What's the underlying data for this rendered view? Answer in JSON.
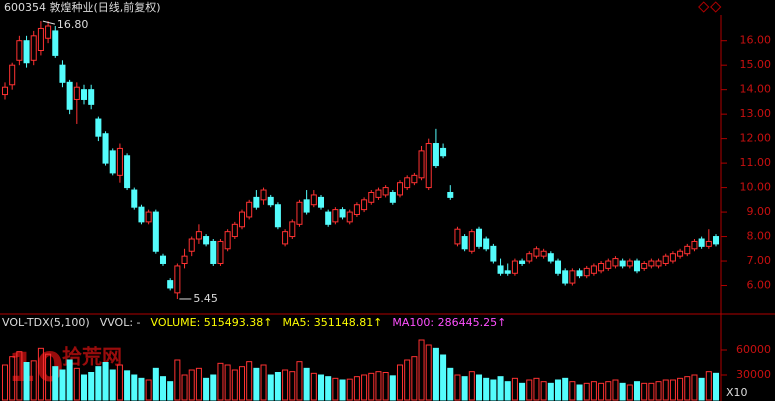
{
  "chart_data": {
    "type": "candlestick",
    "title": "600354 敦煌种业(日线,前复权)",
    "open": [
      13.8,
      14.2,
      15.2,
      16.0,
      15.2,
      15.6,
      16.1,
      16.4,
      15.0,
      14.3,
      13.6,
      14.0,
      14.0,
      12.8,
      12.2,
      11.5,
      10.5,
      11.3,
      9.9,
      9.2,
      8.6,
      9.0,
      7.2,
      6.2,
      5.7,
      6.9,
      7.4,
      7.9,
      8.0,
      7.8,
      6.9,
      7.5,
      8.0,
      8.4,
      8.8,
      9.6,
      9.5,
      9.6,
      9.3,
      7.7,
      8.0,
      8.5,
      9.5,
      9.3,
      9.6,
      9.0,
      8.6,
      9.1,
      8.6,
      8.9,
      9.1,
      9.4,
      9.6,
      9.7,
      9.8,
      9.7,
      10.0,
      10.2,
      10.4,
      10.0,
      11.8,
      11.6,
      9.8,
      7.7,
      8.0,
      7.4,
      8.3,
      7.9,
      7.6,
      6.8,
      6.6,
      6.5,
      7.0,
      7.0,
      7.2,
      7.2,
      7.3,
      7.0,
      6.6,
      6.1,
      6.6,
      6.4,
      6.5,
      6.6,
      6.7,
      6.8,
      7.0,
      6.8,
      7.0,
      6.7,
      6.8,
      6.8,
      6.9,
      7.0,
      7.2,
      7.3,
      7.5,
      7.9,
      7.6,
      8.0
    ],
    "high": [
      14.3,
      15.1,
      16.2,
      16.2,
      16.4,
      16.8,
      16.8,
      16.6,
      15.2,
      14.4,
      14.3,
      14.2,
      14.2,
      12.9,
      12.3,
      11.6,
      11.8,
      11.4,
      10.0,
      9.3,
      9.1,
      9.1,
      7.3,
      6.3,
      6.9,
      7.5,
      8.0,
      8.5,
      8.1,
      7.9,
      7.9,
      8.3,
      8.6,
      9.1,
      9.5,
      9.9,
      10.0,
      9.7,
      9.4,
      8.3,
      8.7,
      9.5,
      9.9,
      9.9,
      9.7,
      9.1,
      9.2,
      9.2,
      9.1,
      9.4,
      9.6,
      9.9,
      10.0,
      10.1,
      9.9,
      10.3,
      10.5,
      10.6,
      11.7,
      12.0,
      12.4,
      11.8,
      10.1,
      8.4,
      8.1,
      8.3,
      8.4,
      8.0,
      7.7,
      7.1,
      6.9,
      7.1,
      7.1,
      7.4,
      7.6,
      7.5,
      7.4,
      7.1,
      6.7,
      6.7,
      6.7,
      6.8,
      6.9,
      7.0,
      7.1,
      7.2,
      7.1,
      7.1,
      7.1,
      7.0,
      7.1,
      7.1,
      7.3,
      7.4,
      7.5,
      7.7,
      7.9,
      8.0,
      8.3,
      8.1
    ],
    "low": [
      13.6,
      14.0,
      15.0,
      14.9,
      15.0,
      15.4,
      15.9,
      15.3,
      14.1,
      13.0,
      12.6,
      13.4,
      13.2,
      11.9,
      10.9,
      10.5,
      10.2,
      9.9,
      9.1,
      8.5,
      8.5,
      7.3,
      6.8,
      5.8,
      5.45,
      6.7,
      7.2,
      7.7,
      7.6,
      6.8,
      6.8,
      7.4,
      7.9,
      8.3,
      8.7,
      9.1,
      9.3,
      9.2,
      8.3,
      7.6,
      7.9,
      8.4,
      8.9,
      9.2,
      9.1,
      8.4,
      8.5,
      8.7,
      8.5,
      8.8,
      9.0,
      9.3,
      9.5,
      9.6,
      9.3,
      9.6,
      9.9,
      10.1,
      10.3,
      9.9,
      10.8,
      11.2,
      9.5,
      7.6,
      7.4,
      7.3,
      7.5,
      7.4,
      6.9,
      6.4,
      6.4,
      6.4,
      6.8,
      6.9,
      7.1,
      7.1,
      6.9,
      6.4,
      6.0,
      6.0,
      6.3,
      6.3,
      6.4,
      6.5,
      6.6,
      6.7,
      6.7,
      6.7,
      6.5,
      6.6,
      6.7,
      6.7,
      6.8,
      6.9,
      7.1,
      7.2,
      7.4,
      7.5,
      7.5,
      7.6
    ],
    "close": [
      14.1,
      15.0,
      16.0,
      15.1,
      16.2,
      16.5,
      16.6,
      15.4,
      14.3,
      13.2,
      14.1,
      13.6,
      13.4,
      12.1,
      11.0,
      10.6,
      11.6,
      10.0,
      9.2,
      8.6,
      9.0,
      7.4,
      6.9,
      5.9,
      6.8,
      7.2,
      7.9,
      8.2,
      7.7,
      6.9,
      7.8,
      8.2,
      8.5,
      9.0,
      9.4,
      9.2,
      9.9,
      9.3,
      8.4,
      8.2,
      8.6,
      9.4,
      9.0,
      9.7,
      9.2,
      8.5,
      9.1,
      8.8,
      9.0,
      9.3,
      9.5,
      9.8,
      9.9,
      10.0,
      9.4,
      10.2,
      10.4,
      10.5,
      11.5,
      11.8,
      10.9,
      11.3,
      9.6,
      8.3,
      7.5,
      8.2,
      7.6,
      7.5,
      7.0,
      6.5,
      6.5,
      7.0,
      6.9,
      7.3,
      7.5,
      7.4,
      7.0,
      6.5,
      6.1,
      6.6,
      6.4,
      6.7,
      6.8,
      6.9,
      7.0,
      7.1,
      6.8,
      7.0,
      6.6,
      6.9,
      7.0,
      7.0,
      7.2,
      7.3,
      7.4,
      7.6,
      7.8,
      7.6,
      7.8,
      7.7
    ],
    "volume": [
      42000,
      52000,
      58000,
      45000,
      47000,
      62000,
      55000,
      40000,
      36000,
      48000,
      38000,
      30000,
      33000,
      40000,
      45000,
      36000,
      42000,
      35000,
      30000,
      26000,
      24000,
      38000,
      28000,
      22000,
      48000,
      30000,
      36000,
      38000,
      26000,
      30000,
      44000,
      42000,
      36000,
      40000,
      46000,
      38000,
      42000,
      30000,
      33000,
      36000,
      34000,
      46000,
      38000,
      32000,
      30000,
      28000,
      26000,
      24000,
      25000,
      28000,
      30000,
      32000,
      34000,
      33000,
      29000,
      42000,
      48000,
      52000,
      72000,
      66000,
      62000,
      54000,
      38000,
      30000,
      28000,
      34000,
      30000,
      26000,
      24000,
      28000,
      22000,
      26000,
      20000,
      24000,
      26000,
      22000,
      20000,
      24000,
      26000,
      22000,
      18000,
      20000,
      22000,
      20000,
      22000,
      24000,
      20000,
      18000,
      22000,
      20000,
      20000,
      22000,
      24000,
      24000,
      26000,
      28000,
      30000,
      26000,
      34000,
      32000
    ],
    "up_color": "#ff3232",
    "down_color": "#54fcfc",
    "ylim": [
      5.0,
      17.05
    ],
    "yticks": [
      {
        "value": 6,
        "label": "6.00"
      },
      {
        "value": 7,
        "label": "7.00"
      },
      {
        "value": 8,
        "label": "8.00"
      },
      {
        "value": 9,
        "label": "9.00"
      },
      {
        "value": 10,
        "label": "10.00"
      },
      {
        "value": 11,
        "label": "11.00"
      },
      {
        "value": 12,
        "label": "12.00"
      },
      {
        "value": 13,
        "label": "13.00"
      },
      {
        "value": 14,
        "label": "14.00"
      },
      {
        "value": 15,
        "label": "15.00"
      },
      {
        "value": 16,
        "label": "16.00"
      }
    ],
    "y2lim": [
      0,
      84000
    ],
    "y2ticks": [
      30000,
      60000
    ],
    "y2_unit": "X10",
    "annotations": [
      {
        "value": 16.8,
        "label": "16.80"
      },
      {
        "value": 5.45,
        "label": "5.45"
      }
    ],
    "indicator": [
      "VOL-TDX(5,100)",
      "VVOL: -",
      "VOLUME: 515493.38↑",
      "MA5: 351148.81↑",
      "MA100: 286445.25↑"
    ],
    "indicator_colors": [
      "#dcdcdc",
      "#dcdcdc",
      "#ffff00",
      "#ffff00",
      "#ff50ff"
    ],
    "watermark": "拾荒网"
  }
}
